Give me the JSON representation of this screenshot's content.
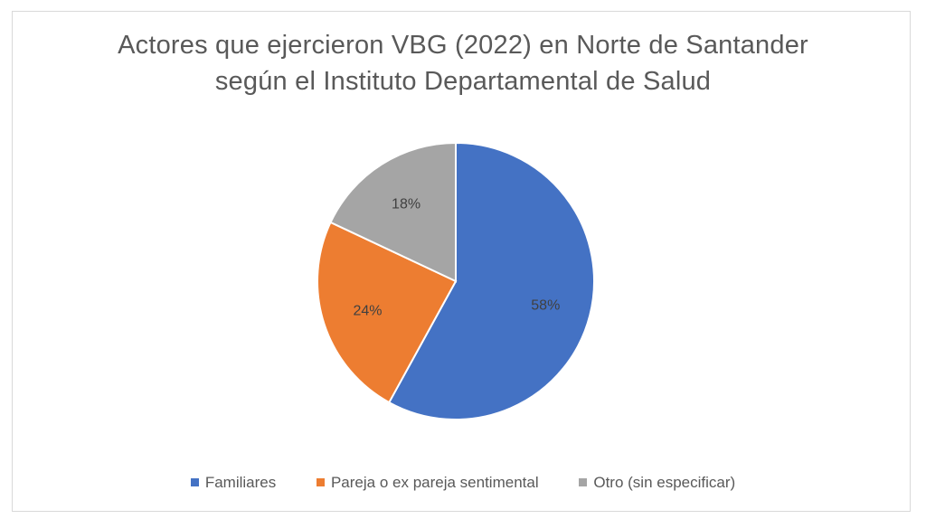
{
  "chart_data": {
    "type": "pie",
    "title_lines": [
      "Actores que ejercieron VBG (2022) en Norte de Santander",
      "según  el Instituto Departamental de Salud"
    ],
    "categories": [
      "Familiares",
      "Pareja o ex pareja sentimental",
      "Otro (sin especificar)"
    ],
    "values": [
      58,
      24,
      18
    ],
    "data_labels": [
      "58%",
      "24%",
      "18%"
    ],
    "colors": [
      "#4472C4",
      "#ED7D31",
      "#A5A5A5"
    ],
    "legend_position": "bottom",
    "start_angle": "12 o'clock",
    "direction": "clockwise"
  }
}
